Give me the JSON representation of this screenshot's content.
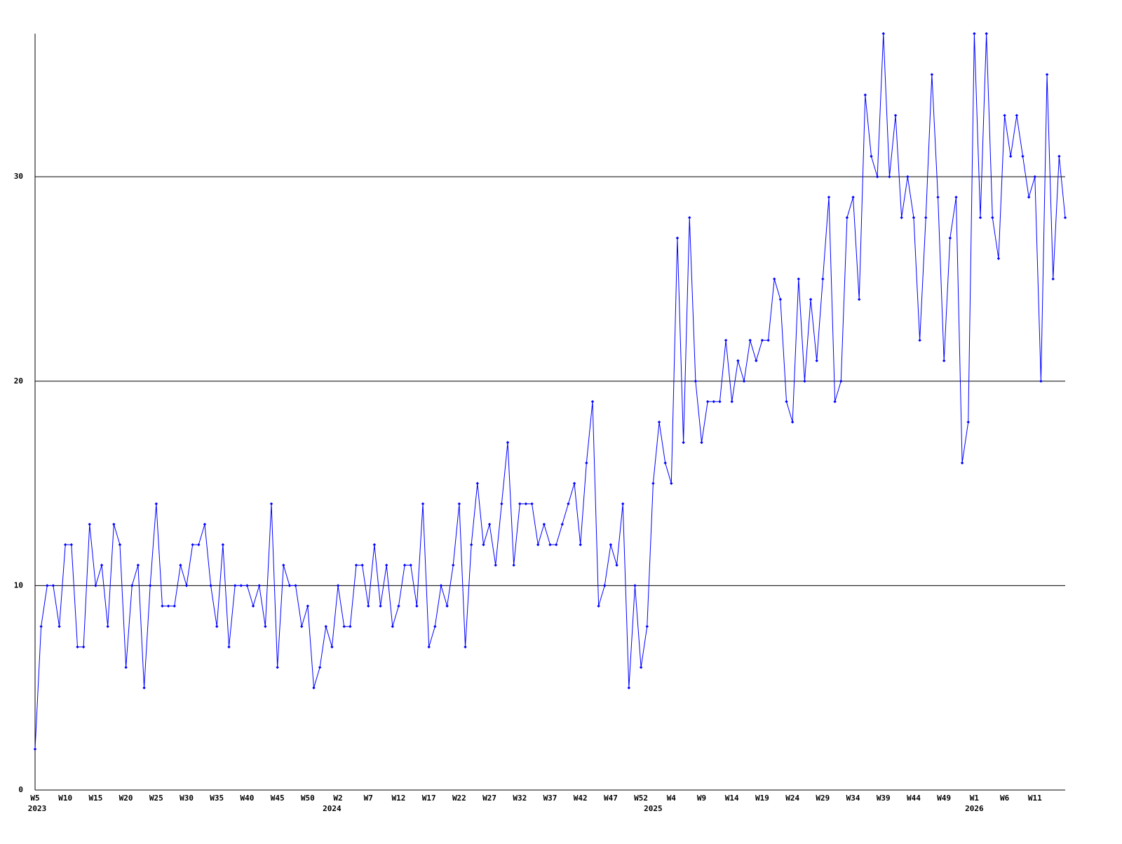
{
  "chart_data": {
    "type": "line",
    "color": "#0000ff",
    "grid": true,
    "ylim": [
      0,
      37
    ],
    "yticks": [
      0,
      10,
      20,
      30
    ],
    "categories": [
      "W5",
      null,
      null,
      null,
      null,
      "W10",
      null,
      null,
      null,
      null,
      "W15",
      null,
      null,
      null,
      null,
      "W20",
      null,
      null,
      null,
      null,
      "W25",
      null,
      null,
      null,
      null,
      "W30",
      null,
      null,
      null,
      null,
      "W35",
      null,
      null,
      null,
      null,
      "W40",
      null,
      null,
      null,
      null,
      "W45",
      null,
      null,
      null,
      null,
      "W50",
      null,
      null,
      null,
      null,
      "W2",
      null,
      null,
      null,
      null,
      "W7",
      null,
      null,
      null,
      null,
      "W12",
      null,
      null,
      null,
      null,
      "W17",
      null,
      null,
      null,
      null,
      "W22",
      null,
      null,
      null,
      null,
      "W27",
      null,
      null,
      null,
      null,
      "W32",
      null,
      null,
      null,
      null,
      "W37",
      null,
      null,
      null,
      null,
      "W42",
      null,
      null,
      null,
      null,
      "W47",
      null,
      null,
      null,
      null,
      "W52",
      null,
      null,
      null,
      null,
      "W4",
      null,
      null,
      null,
      null,
      "W9",
      null,
      null,
      null,
      null,
      "W14",
      null,
      null,
      null,
      null,
      "W19",
      null,
      null,
      null,
      null,
      "W24",
      null,
      null,
      null,
      null,
      "W29",
      null,
      null,
      null,
      null,
      "W34",
      null,
      null,
      null,
      null,
      "W39",
      null,
      null,
      null,
      null,
      "W44",
      null,
      null,
      null,
      null,
      "W49",
      null,
      null,
      null,
      null,
      "W1",
      null,
      null,
      null,
      null,
      "W6",
      null,
      null,
      null,
      null,
      "W11",
      null,
      null,
      null,
      null,
      null
    ],
    "category_years": [
      "2023",
      null,
      null,
      null,
      null,
      null,
      null,
      null,
      null,
      null,
      null,
      null,
      null,
      null,
      null,
      null,
      null,
      null,
      null,
      null,
      null,
      null,
      null,
      null,
      null,
      null,
      null,
      null,
      null,
      null,
      null,
      null,
      null,
      null,
      null,
      null,
      null,
      null,
      null,
      null,
      null,
      null,
      null,
      null,
      null,
      null,
      null,
      null,
      null,
      "2024",
      null,
      null,
      null,
      null,
      null,
      null,
      null,
      null,
      null,
      null,
      null,
      null,
      null,
      null,
      null,
      null,
      null,
      null,
      null,
      null,
      null,
      null,
      null,
      null,
      null,
      null,
      null,
      null,
      null,
      null,
      null,
      null,
      null,
      null,
      null,
      null,
      null,
      null,
      null,
      null,
      null,
      null,
      null,
      null,
      null,
      null,
      null,
      null,
      null,
      null,
      null,
      null,
      "2025",
      null,
      null,
      null,
      null,
      null,
      null,
      null,
      null,
      null,
      null,
      null,
      null,
      null,
      null,
      null,
      null,
      null,
      null,
      null,
      null,
      null,
      null,
      null,
      null,
      null,
      null,
      null,
      null,
      null,
      null,
      null,
      null,
      null,
      null,
      null,
      null,
      null,
      null,
      null,
      null,
      null,
      null,
      null,
      null,
      null,
      null,
      null,
      null,
      null,
      null,
      null,
      null,
      "2026",
      null,
      null,
      null,
      null,
      null,
      null,
      null,
      null,
      null,
      null,
      null,
      null,
      null,
      null,
      null
    ],
    "values": [
      2,
      8,
      10,
      10,
      8,
      12,
      12,
      7,
      7,
      13,
      10,
      11,
      8,
      13,
      12,
      6,
      10,
      11,
      5,
      10,
      14,
      9,
      9,
      9,
      11,
      10,
      12,
      12,
      13,
      10,
      8,
      12,
      7,
      10,
      10,
      10,
      9,
      10,
      8,
      14,
      6,
      11,
      10,
      10,
      8,
      9,
      5,
      6,
      8,
      7,
      10,
      8,
      8,
      11,
      11,
      9,
      12,
      9,
      11,
      8,
      9,
      11,
      11,
      9,
      14,
      7,
      8,
      10,
      9,
      11,
      14,
      7,
      12,
      15,
      12,
      13,
      11,
      14,
      17,
      11,
      14,
      14,
      14,
      12,
      13,
      12,
      12,
      13,
      14,
      15,
      12,
      16,
      19,
      9,
      10,
      12,
      11,
      14,
      5,
      10,
      6,
      8,
      15,
      18,
      16,
      15,
      27,
      17,
      28,
      20,
      17,
      19,
      19,
      19,
      22,
      19,
      21,
      20,
      22,
      21,
      22,
      22,
      25,
      24,
      19,
      18,
      25,
      20,
      24,
      21,
      25,
      29,
      19,
      20,
      28,
      29,
      24,
      34,
      31,
      30,
      37,
      30,
      33,
      28,
      30,
      28,
      22,
      28,
      35,
      29,
      21,
      27,
      29,
      16,
      18,
      37,
      28,
      37,
      28,
      26,
      33,
      31,
      33,
      31,
      29,
      30,
      20,
      35,
      25,
      31,
      28
    ]
  }
}
